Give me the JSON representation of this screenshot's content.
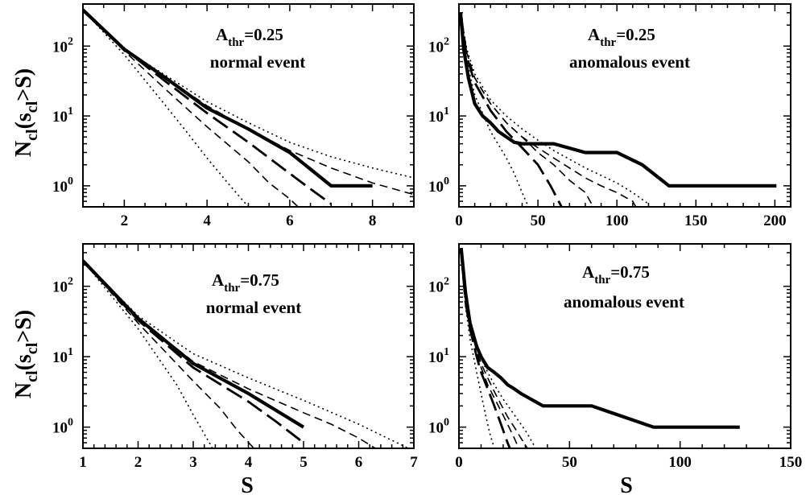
{
  "figure": {
    "ylabel": {
      "main": "N",
      "sub1": "cl",
      "mid": "(s",
      "sub2": "cl",
      "tail": ">S)"
    },
    "xlabel": "S"
  },
  "chart_data": [
    {
      "type": "line",
      "yscale": "log",
      "label": {
        "a": "A",
        "sub": "thr",
        "val": "=0.25",
        "line2": "normal event"
      },
      "xlim": [
        1,
        9
      ],
      "ylim": [
        0.5,
        400
      ],
      "xticks": [
        2,
        4,
        6,
        8
      ],
      "yticks": [
        {
          "value": 1,
          "base": "10",
          "exp": "0"
        },
        {
          "value": 10,
          "base": "10",
          "exp": "1"
        },
        {
          "value": 100,
          "base": "10",
          "exp": "2"
        }
      ],
      "series": [
        {
          "style": "solid-thick",
          "x": [
            1,
            2,
            3,
            4,
            5,
            6,
            7,
            7.5,
            8
          ],
          "y": [
            330,
            90,
            35,
            13,
            6.5,
            3,
            1,
            1,
            1
          ]
        },
        {
          "style": "long-dash",
          "x": [
            1,
            2,
            3,
            4,
            5,
            6,
            6.5,
            7
          ],
          "y": [
            330,
            90,
            31,
            11,
            4.2,
            1.5,
            0.9,
            0.55
          ]
        },
        {
          "style": "dashed",
          "x": [
            1,
            2,
            3,
            4,
            5,
            5.5,
            6,
            6.2
          ],
          "y": [
            330,
            85,
            24,
            7,
            2.2,
            1.1,
            0.65,
            0.5
          ]
        },
        {
          "style": "dotted",
          "x": [
            1,
            2,
            3,
            3.5,
            4,
            4.5,
            5
          ],
          "y": [
            330,
            75,
            14,
            6,
            2.5,
            1.1,
            0.5
          ]
        },
        {
          "style": "dashed",
          "x": [
            1,
            2,
            3,
            4,
            5,
            6,
            7,
            8,
            9
          ],
          "y": [
            330,
            90,
            35,
            14,
            6.5,
            3.2,
            1.8,
            1.1,
            0.75
          ]
        },
        {
          "style": "dotted",
          "x": [
            1,
            2,
            3,
            4,
            5,
            6,
            7,
            8,
            9
          ],
          "y": [
            330,
            90,
            38,
            16,
            8,
            4.2,
            2.6,
            1.8,
            1.3
          ]
        }
      ]
    },
    {
      "type": "line",
      "yscale": "log",
      "label": {
        "a": "A",
        "sub": "thr",
        "val": "=0.25",
        "line2": "anomalous event"
      },
      "xlim": [
        0,
        210
      ],
      "ylim": [
        0.5,
        400
      ],
      "xticks": [
        0,
        50,
        100,
        150,
        200
      ],
      "yticks": [
        {
          "value": 1,
          "base": "10",
          "exp": "0"
        },
        {
          "value": 10,
          "base": "10",
          "exp": "1"
        },
        {
          "value": 100,
          "base": "10",
          "exp": "2"
        }
      ],
      "series": [
        {
          "style": "solid-thick",
          "x": [
            1,
            3,
            6,
            10,
            15,
            20,
            25,
            30,
            35,
            40,
            60,
            80,
            100,
            116,
            133,
            150,
            201
          ],
          "y": [
            300,
            90,
            35,
            15,
            10,
            8,
            6,
            5,
            4.2,
            4,
            4,
            3,
            3,
            2,
            1,
            1,
            1
          ]
        },
        {
          "style": "long-dash",
          "x": [
            1,
            5,
            10,
            20,
            30,
            40,
            50,
            58,
            65
          ],
          "y": [
            300,
            70,
            30,
            12,
            6,
            3.5,
            2,
            1,
            0.5
          ]
        },
        {
          "style": "dashed",
          "x": [
            1,
            5,
            10,
            20,
            30,
            40,
            50,
            60,
            70,
            80,
            85
          ],
          "y": [
            300,
            80,
            35,
            15,
            8,
            5,
            3,
            2,
            1.2,
            0.8,
            0.5
          ]
        },
        {
          "style": "dotted",
          "x": [
            1,
            5,
            10,
            20,
            30,
            35,
            40,
            44
          ],
          "y": [
            300,
            60,
            20,
            6,
            2.5,
            1.5,
            0.8,
            0.5
          ]
        },
        {
          "style": "dashed",
          "x": [
            1,
            5,
            10,
            20,
            30,
            40,
            50,
            60,
            70,
            80,
            90,
            100,
            110,
            112
          ],
          "y": [
            300,
            80,
            35,
            15,
            8,
            5,
            3.5,
            2.5,
            1.8,
            1.3,
            1.0,
            0.8,
            0.6,
            0.5
          ]
        },
        {
          "style": "dotted",
          "x": [
            1,
            5,
            10,
            20,
            30,
            40,
            50,
            60,
            80,
            100,
            110,
            120
          ],
          "y": [
            300,
            90,
            40,
            17,
            10,
            6.5,
            4.5,
            3.2,
            1.8,
            1.1,
            0.8,
            0.55
          ]
        }
      ]
    },
    {
      "type": "line",
      "yscale": "log",
      "label": {
        "a": "A",
        "sub": "thr",
        "val": "=0.75",
        "line2": "normal event"
      },
      "xlim": [
        1,
        7
      ],
      "ylim": [
        0.5,
        400
      ],
      "xticks": [
        1,
        2,
        3,
        4,
        5,
        6,
        7
      ],
      "yticks": [
        {
          "value": 1,
          "base": "10",
          "exp": "0"
        },
        {
          "value": 10,
          "base": "10",
          "exp": "1"
        },
        {
          "value": 100,
          "base": "10",
          "exp": "2"
        }
      ],
      "series": [
        {
          "style": "solid-thick",
          "x": [
            1,
            2,
            3,
            4,
            5
          ],
          "y": [
            230,
            35,
            8,
            3,
            1
          ]
        },
        {
          "style": "long-dash",
          "x": [
            1,
            2,
            3,
            4,
            4.5,
            5
          ],
          "y": [
            230,
            33,
            7,
            2.3,
            1.2,
            0.6
          ]
        },
        {
          "style": "dashed",
          "x": [
            1,
            2,
            3,
            3.5,
            3.8,
            4.1
          ],
          "y": [
            230,
            30,
            4.5,
            1.8,
            0.9,
            0.5
          ]
        },
        {
          "style": "dotted",
          "x": [
            1,
            2,
            2.7,
            3,
            3.2,
            3.35
          ],
          "y": [
            230,
            25,
            4,
            1.5,
            0.8,
            0.5
          ]
        },
        {
          "style": "dashed",
          "x": [
            1,
            2,
            3,
            4,
            5,
            5.5,
            6,
            6.3
          ],
          "y": [
            230,
            35,
            8.5,
            3.5,
            1.6,
            1.1,
            0.7,
            0.5
          ]
        },
        {
          "style": "dotted",
          "x": [
            1,
            2,
            3,
            4,
            5,
            6,
            6.9
          ],
          "y": [
            230,
            38,
            11,
            5,
            2.4,
            1.1,
            0.5
          ]
        }
      ]
    },
    {
      "type": "line",
      "yscale": "log",
      "label": {
        "a": "A",
        "sub": "thr",
        "val": "=0.75",
        "line2": "anomalous event"
      },
      "xlim": [
        0,
        150
      ],
      "ylim": [
        0.5,
        400
      ],
      "xticks": [
        0,
        50,
        100,
        150
      ],
      "yticks": [
        {
          "value": 1,
          "base": "10",
          "exp": "0"
        },
        {
          "value": 10,
          "base": "10",
          "exp": "1"
        },
        {
          "value": 100,
          "base": "10",
          "exp": "2"
        }
      ],
      "series": [
        {
          "style": "solid-thick",
          "x": [
            1,
            3,
            5,
            8,
            10,
            13,
            16,
            19,
            22,
            25,
            28,
            38,
            60,
            88,
            100,
            127
          ],
          "y": [
            350,
            80,
            30,
            14,
            10,
            7,
            6,
            5,
            4,
            3.5,
            3,
            2,
            2,
            1,
            1,
            1
          ]
        },
        {
          "style": "long-dash",
          "x": [
            1,
            3,
            5,
            8,
            10,
            13,
            16,
            19,
            22,
            23
          ],
          "y": [
            300,
            60,
            25,
            10,
            6,
            3.5,
            2,
            1.1,
            0.6,
            0.5
          ]
        },
        {
          "style": "dashed",
          "x": [
            1,
            3,
            5,
            8,
            10,
            13,
            16,
            19,
            22,
            25,
            27
          ],
          "y": [
            300,
            70,
            28,
            12,
            7,
            4,
            2.6,
            1.7,
            1.1,
            0.7,
            0.5
          ]
        },
        {
          "style": "dotted",
          "x": [
            1,
            3,
            5,
            8,
            10,
            12,
            14,
            16
          ],
          "y": [
            300,
            50,
            18,
            6,
            3,
            1.5,
            0.8,
            0.5
          ]
        },
        {
          "style": "dashed",
          "x": [
            1,
            3,
            5,
            8,
            10,
            13,
            16,
            19,
            22,
            25,
            28,
            31
          ],
          "y": [
            300,
            70,
            30,
            13,
            8,
            5,
            3.2,
            2.1,
            1.4,
            1.0,
            0.7,
            0.5
          ]
        },
        {
          "style": "dotted",
          "x": [
            1,
            3,
            5,
            8,
            10,
            13,
            16,
            20,
            25,
            30,
            34
          ],
          "y": [
            300,
            80,
            35,
            15,
            9.5,
            6,
            4,
            2.5,
            1.5,
            0.9,
            0.55
          ]
        }
      ]
    }
  ]
}
